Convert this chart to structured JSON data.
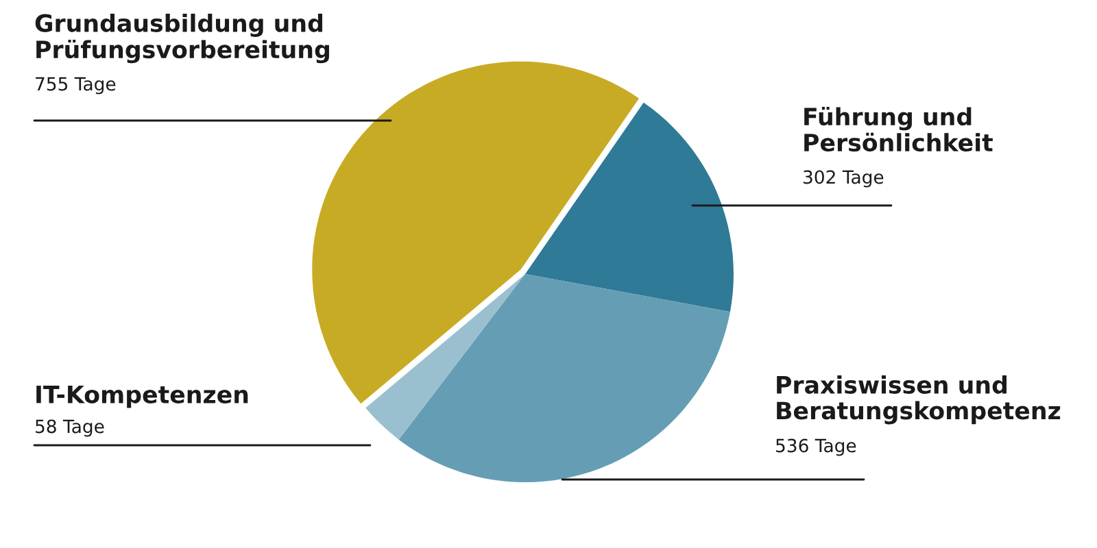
{
  "chart_data": {
    "type": "pie",
    "categories": [
      "Grundausbildung und\nPrüfungsvorbereitung",
      "Führung und\nPersönlichkeit",
      "Praxiswissen und\nBeratungskompetenz",
      "IT-Kompetenzen"
    ],
    "values": [
      755,
      302,
      536,
      58
    ],
    "value_labels": [
      "755 Tage",
      "302 Tage",
      "536 Tage",
      "58 Tage"
    ],
    "colors": [
      "#c8ab24",
      "#2f7a96",
      "#659eb4",
      "#9ac0d0"
    ],
    "legend": false
  }
}
